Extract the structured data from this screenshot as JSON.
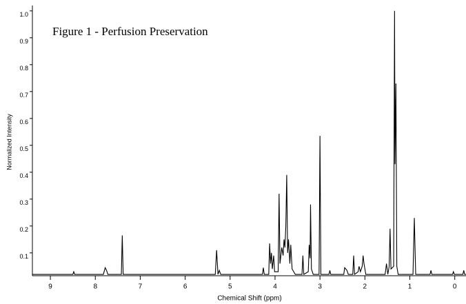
{
  "chart_data": {
    "type": "line",
    "title": "Figure 1 - Perfusion Preservation",
    "x_label": "Chemical Shift (ppm)",
    "y_label": "Normalized Intensity",
    "xlim": [
      9.4,
      -0.25
    ],
    "ylim": [
      0.015,
      1.02
    ],
    "xticks": [
      9,
      8,
      7,
      6,
      5,
      4,
      3,
      2,
      1,
      0
    ],
    "yticks": [
      0.1,
      0.2,
      0.3,
      0.4,
      0.5,
      0.6,
      0.7,
      0.8,
      0.9,
      {
        "value": 1.0,
        "label": "1.0"
      }
    ],
    "series": [
      {
        "color": "#000000",
        "x": [
          9.4,
          8.5,
          8.48,
          8.46,
          7.82,
          7.78,
          7.75,
          7.72,
          7.42,
          7.4,
          7.38,
          5.33,
          5.3,
          5.27,
          5.24,
          5.21,
          4.28,
          4.26,
          4.24,
          4.14,
          4.12,
          4.1,
          4.08,
          4.06,
          4.03,
          4.01,
          3.93,
          3.91,
          3.89,
          3.85,
          3.82,
          3.8,
          3.78,
          3.76,
          3.74,
          3.72,
          3.7,
          3.67,
          3.65,
          3.62,
          3.55,
          3.4,
          3.38,
          3.36,
          3.26,
          3.24,
          3.22,
          3.21,
          3.19,
          3.15,
          3.02,
          3.0,
          2.98,
          2.8,
          2.78,
          2.76,
          2.47,
          2.45,
          2.4,
          2.37,
          2.27,
          2.25,
          2.23,
          2.15,
          2.13,
          2.1,
          2.06,
          2.04,
          2.02,
          1.98,
          1.55,
          1.52,
          1.49,
          1.46,
          1.44,
          1.42,
          1.36,
          1.34,
          1.33,
          1.31,
          1.29,
          1.26,
          0.93,
          0.9,
          0.87,
          0.55,
          0.53,
          0.51,
          0.05,
          0.03,
          0.01,
          -0.18,
          -0.2,
          -0.22,
          -0.25
        ],
        "values": [
          0.02,
          0.02,
          0.03,
          0.02,
          0.02,
          0.045,
          0.035,
          0.02,
          0.02,
          0.165,
          0.02,
          0.02,
          0.11,
          0.02,
          0.035,
          0.02,
          0.02,
          0.045,
          0.02,
          0.02,
          0.135,
          0.06,
          0.1,
          0.04,
          0.09,
          0.03,
          0.03,
          0.32,
          0.06,
          0.12,
          0.09,
          0.15,
          0.12,
          0.2,
          0.39,
          0.1,
          0.15,
          0.06,
          0.13,
          0.04,
          0.02,
          0.02,
          0.09,
          0.02,
          0.03,
          0.13,
          0.08,
          0.28,
          0.04,
          0.02,
          0.02,
          0.535,
          0.02,
          0.02,
          0.035,
          0.02,
          0.02,
          0.045,
          0.035,
          0.02,
          0.02,
          0.09,
          0.02,
          0.03,
          0.05,
          0.03,
          0.05,
          0.09,
          0.06,
          0.02,
          0.02,
          0.06,
          0.02,
          0.05,
          0.19,
          0.04,
          0.05,
          1.0,
          0.43,
          0.73,
          0.05,
          0.02,
          0.02,
          0.23,
          0.02,
          0.02,
          0.035,
          0.02,
          0.02,
          0.03,
          0.02,
          0.02,
          0.035,
          0.02,
          0.02
        ]
      }
    ]
  }
}
